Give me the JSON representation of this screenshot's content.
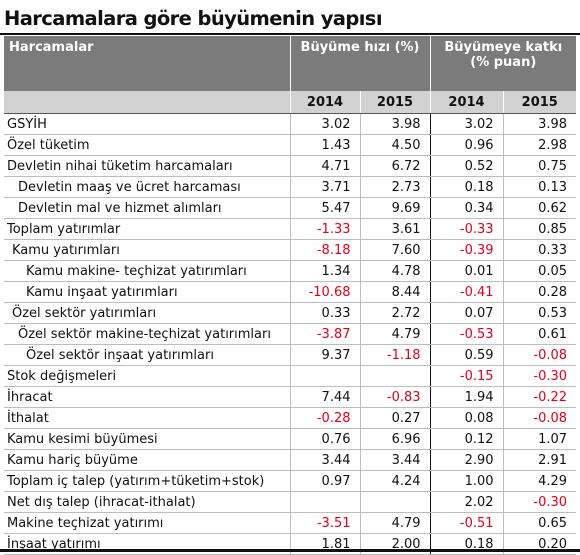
{
  "title": "Harcamalara göre büyümenin yapısı",
  "header": {
    "label": "Harcamalar",
    "group1": "Büyüme hızı (%)",
    "group2_line1": "Büyümeye katkı",
    "group2_line2": "(% puan)",
    "years": [
      "2014",
      "2015",
      "2014",
      "2015"
    ]
  },
  "colors": {
    "header_dark": "#7b7b7b",
    "header_light": "#d2d2d2",
    "negative": "#e2001a"
  },
  "rows": [
    {
      "label": "GSYİH",
      "indent": 0,
      "values": [
        "3.02",
        "3.98",
        "3.02",
        "3.98"
      ]
    },
    {
      "label": "Özel tüketim",
      "indent": 0,
      "values": [
        "1.43",
        "4.50",
        "0.96",
        "2.98"
      ]
    },
    {
      "label": "Devletin nihai tüketim harcamaları",
      "indent": 0,
      "values": [
        "4.71",
        "6.72",
        "0.52",
        "0.75"
      ]
    },
    {
      "label": "Devletin maaş ve ücret harcaması",
      "indent": 2,
      "values": [
        "3.71",
        "2.73",
        "0.18",
        "0.13"
      ]
    },
    {
      "label": "Devletin mal ve hizmet alımları",
      "indent": 2,
      "values": [
        "5.47",
        "9.69",
        "0.34",
        "0.62"
      ]
    },
    {
      "label": "Toplam yatırımlar",
      "indent": 0,
      "values": [
        "-1.33",
        "3.61",
        "-0.33",
        "0.85"
      ]
    },
    {
      "label": "Kamu yatırımları",
      "indent": 1,
      "values": [
        "-8.18",
        "7.60",
        "-0.39",
        "0.33"
      ]
    },
    {
      "label": "Kamu makine- teçhizat yatırımları",
      "indent": 3,
      "values": [
        "1.34",
        "4.78",
        "0.01",
        "0.05"
      ]
    },
    {
      "label": "Kamu inşaat yatırımları",
      "indent": 3,
      "values": [
        "-10.68",
        "8.44",
        "-0.41",
        "0.28"
      ]
    },
    {
      "label": "Özel sektör yatırımları",
      "indent": 1,
      "values": [
        "0.33",
        "2.72",
        "0.07",
        "0.53"
      ]
    },
    {
      "label": "Özel sektör makine-teçhizat yatırımları",
      "indent": 2,
      "values": [
        "-3.87",
        "4.79",
        "-0.53",
        "0.61"
      ]
    },
    {
      "label": "Özel sektör inşaat yatırımları",
      "indent": 3,
      "values": [
        "9.37",
        "-1.18",
        "0.59",
        "-0.08"
      ]
    },
    {
      "label": "Stok değişmeleri",
      "indent": 0,
      "values": [
        "",
        "",
        "-0.15",
        "-0.30"
      ]
    },
    {
      "label": "İhracat",
      "indent": 0,
      "values": [
        "7.44",
        "-0.83",
        "1.94",
        "-0.22"
      ]
    },
    {
      "label": "İthalat",
      "indent": 0,
      "values": [
        "-0.28",
        "0.27",
        "0.08",
        "-0.08"
      ]
    },
    {
      "label": "Kamu kesimi büyümesi",
      "indent": 0,
      "values": [
        "0.76",
        "6.96",
        "0.12",
        "1.07"
      ]
    },
    {
      "label": "Kamu hariç büyüme",
      "indent": 0,
      "values": [
        "3.44",
        "3.44",
        "2.90",
        "2.91"
      ]
    },
    {
      "label": "Toplam iç talep (yatırım+tüketim+stok)",
      "indent": 0,
      "values": [
        "0.97",
        "4.24",
        "1.00",
        "4.29"
      ]
    },
    {
      "label": "Net dış talep (ihracat-ithalat)",
      "indent": 0,
      "values": [
        "",
        "",
        "2.02",
        "-0.30"
      ]
    },
    {
      "label": "Makine teçhizat yatırımı",
      "indent": 0,
      "values": [
        "-3.51",
        "4.79",
        "-0.51",
        "0.65"
      ]
    },
    {
      "label": "İnşaat yatırımı",
      "indent": 0,
      "values": [
        "1.81",
        "2.00",
        "0.18",
        "0.20"
      ]
    }
  ]
}
